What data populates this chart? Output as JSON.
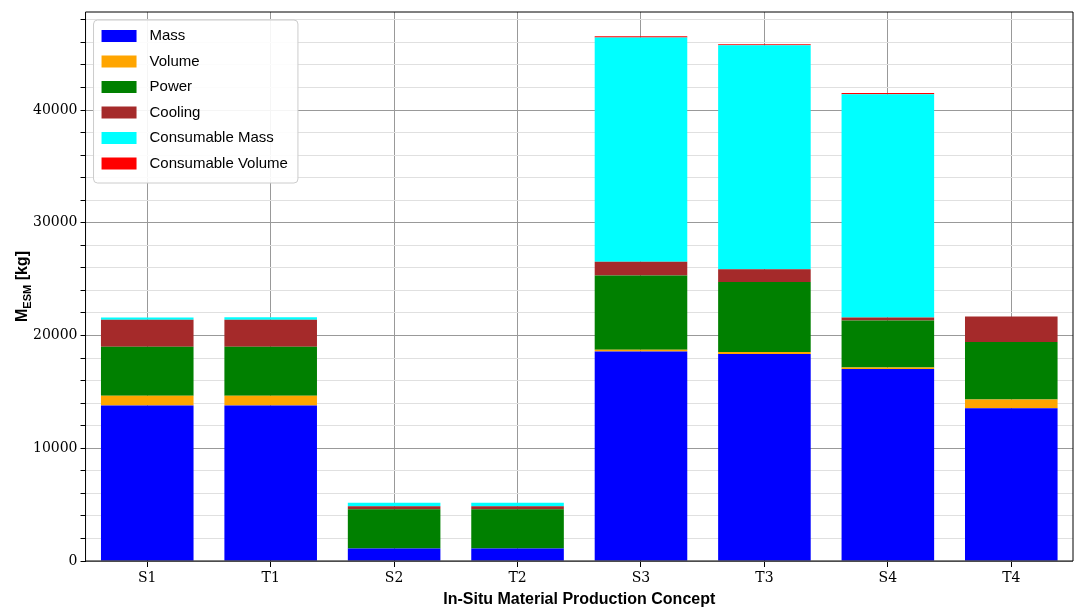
{
  "chart_data": {
    "type": "bar",
    "stacked": true,
    "xlabel": "In-Situ Material Production Concept",
    "ylabel": "M$_{ESM}$ [kg]",
    "categories": [
      "S1",
      "T1",
      "S2",
      "T2",
      "S3",
      "T3",
      "S4",
      "T4"
    ],
    "series": [
      {
        "name": "Mass",
        "color": "#0000ff",
        "values": [
          13800,
          13800,
          1100,
          1100,
          18580,
          18370,
          17030,
          13540
        ]
      },
      {
        "name": "Volume",
        "color": "#ffa500",
        "values": [
          850,
          850,
          0,
          0,
          170,
          180,
          140,
          790
        ]
      },
      {
        "name": "Power",
        "color": "#008000",
        "values": [
          4350,
          4350,
          3500,
          3500,
          6570,
          6210,
          4160,
          5100
        ]
      },
      {
        "name": "Cooling",
        "color": "#a52a2a",
        "values": [
          2400,
          2400,
          260,
          260,
          1230,
          1110,
          270,
          2260
        ]
      },
      {
        "name": "Consumable Mass",
        "color": "#00ffff",
        "values": [
          200,
          230,
          310,
          310,
          19890,
          19870,
          19810,
          0
        ]
      },
      {
        "name": "Consumable Volume",
        "color": "#ff0000",
        "values": [
          0,
          0,
          0,
          0,
          100,
          100,
          100,
          0
        ]
      }
    ],
    "ylim": [
      0,
      48700
    ],
    "yticks": [
      0,
      {
        "value": 2000,
        "label": null
      },
      {
        "value": 4000,
        "label": null
      },
      {
        "value": 6000,
        "label": null
      },
      {
        "value": 8000,
        "label": null
      },
      10000,
      {
        "value": 12000,
        "label": null
      },
      {
        "value": 14000,
        "label": null
      },
      {
        "value": 16000,
        "label": null
      },
      {
        "value": 18000,
        "label": null
      },
      20000,
      {
        "value": 22000,
        "label": null
      },
      {
        "value": 24000,
        "label": null
      },
      {
        "value": 26000,
        "label": null
      },
      {
        "value": 28000,
        "label": null
      },
      30000,
      {
        "value": 32000,
        "label": null
      },
      {
        "value": 34000,
        "label": null
      },
      {
        "value": 36000,
        "label": null
      },
      {
        "value": 38000,
        "label": null
      },
      40000,
      {
        "value": 42000,
        "label": null
      },
      {
        "value": 44000,
        "label": null
      },
      {
        "value": 46000,
        "label": null
      },
      {
        "value": 48000,
        "label": null
      }
    ],
    "grid": true,
    "legend": "top left"
  }
}
